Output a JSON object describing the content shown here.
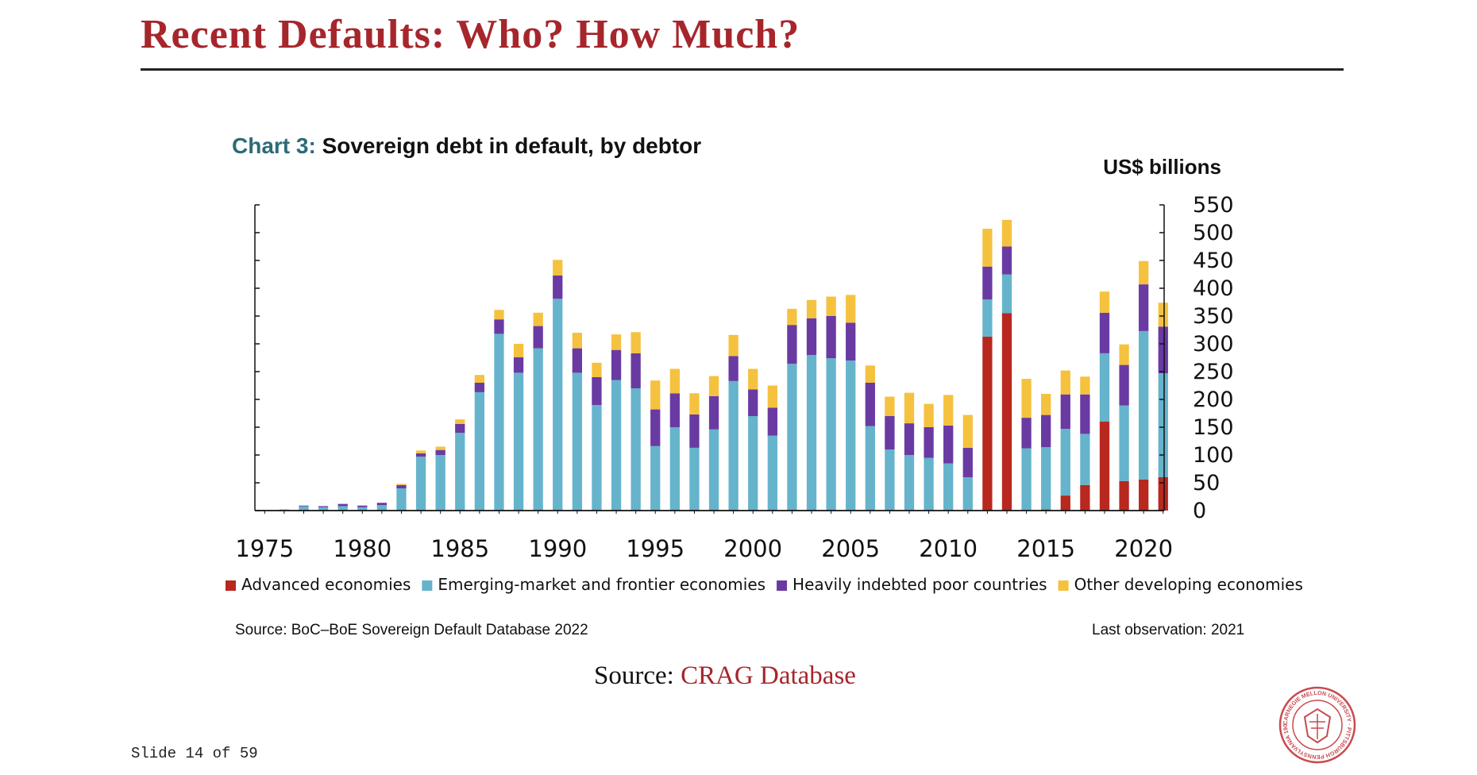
{
  "slide": {
    "title": "Recent Defaults: Who? How Much?",
    "footer_source_label": "Source:",
    "footer_source_link": "CRAG Database",
    "slide_number": "Slide 14 of 59"
  },
  "chart_heading": {
    "number": "Chart 3:",
    "name": "Sovereign debt in default, by debtor"
  },
  "notes": {
    "source": "Source: BoC–BoE Sovereign Default Database 2022",
    "last_observation": "Last observation: 2021"
  },
  "seal": {
    "text": "CARNEGIE MELLON UNIVERSITY · PITTSBURGH PENNSYLVANIA 1900"
  },
  "colors": {
    "title": "#a6262c",
    "advanced": "#b8281e",
    "emerging": "#66b3cc",
    "hipc": "#6a3aa3",
    "other": "#f5c23f"
  },
  "chart_data": {
    "type": "bar",
    "stacked": true,
    "title": "Sovereign debt in default, by debtor",
    "ylabel": "US$ billions",
    "ylim": [
      0,
      550
    ],
    "yticks": [
      0,
      50,
      100,
      150,
      200,
      250,
      300,
      350,
      400,
      450,
      500,
      550
    ],
    "y_axis_side": "right",
    "x_tick_labels": [
      "1975",
      "1980",
      "1985",
      "1990",
      "1995",
      "2000",
      "2005",
      "2010",
      "2015",
      "2020"
    ],
    "legend_position": "bottom",
    "categories": [
      1975,
      1976,
      1977,
      1978,
      1979,
      1980,
      1981,
      1982,
      1983,
      1984,
      1985,
      1986,
      1987,
      1988,
      1989,
      1990,
      1991,
      1992,
      1993,
      1994,
      1995,
      1996,
      1997,
      1998,
      1999,
      2000,
      2001,
      2002,
      2003,
      2004,
      2005,
      2006,
      2007,
      2008,
      2009,
      2010,
      2011,
      2012,
      2013,
      2014,
      2015,
      2016,
      2017,
      2018,
      2019,
      2020,
      2021
    ],
    "series": [
      {
        "name": "Advanced economies",
        "color": "#b8281e",
        "values": [
          0,
          0,
          0,
          0,
          0,
          0,
          0,
          0,
          0,
          0,
          0,
          0,
          0,
          0,
          0,
          0,
          0,
          0,
          0,
          0,
          0,
          0,
          0,
          0,
          0,
          0,
          0,
          0,
          0,
          0,
          0,
          0,
          0,
          0,
          0,
          0,
          0,
          313,
          355,
          0,
          2,
          27,
          46,
          160,
          53,
          56,
          60
        ]
      },
      {
        "name": "Emerging-market and frontier economies",
        "color": "#66b3cc",
        "values": [
          1,
          2,
          8,
          6,
          8,
          6,
          10,
          40,
          97,
          100,
          140,
          213,
          318,
          248,
          292,
          381,
          248,
          190,
          235,
          220,
          116,
          150,
          113,
          146,
          233,
          170,
          135,
          264,
          280,
          274,
          270,
          152,
          110,
          100,
          95,
          85,
          60,
          67,
          70,
          112,
          112,
          120,
          92,
          123,
          136,
          267,
          187
        ]
      },
      {
        "name": "Heavily indebted poor countries",
        "color": "#6a3aa3",
        "values": [
          0,
          0,
          1,
          2,
          4,
          3,
          4,
          6,
          6,
          9,
          16,
          17,
          26,
          28,
          40,
          42,
          44,
          50,
          54,
          63,
          66,
          61,
          60,
          60,
          45,
          48,
          50,
          70,
          66,
          76,
          68,
          78,
          60,
          57,
          55,
          68,
          53,
          59,
          50,
          55,
          58,
          62,
          71,
          73,
          73,
          84,
          84
        ]
      },
      {
        "name": "Other developing economies",
        "color": "#f5c23f",
        "values": [
          0,
          0,
          0,
          0,
          0,
          0,
          0,
          2,
          5,
          6,
          8,
          14,
          17,
          24,
          24,
          28,
          28,
          26,
          28,
          38,
          52,
          44,
          38,
          36,
          38,
          37,
          40,
          29,
          33,
          35,
          50,
          31,
          35,
          55,
          42,
          55,
          59,
          68,
          48,
          70,
          38,
          43,
          32,
          38,
          37,
          42,
          43
        ]
      }
    ]
  }
}
